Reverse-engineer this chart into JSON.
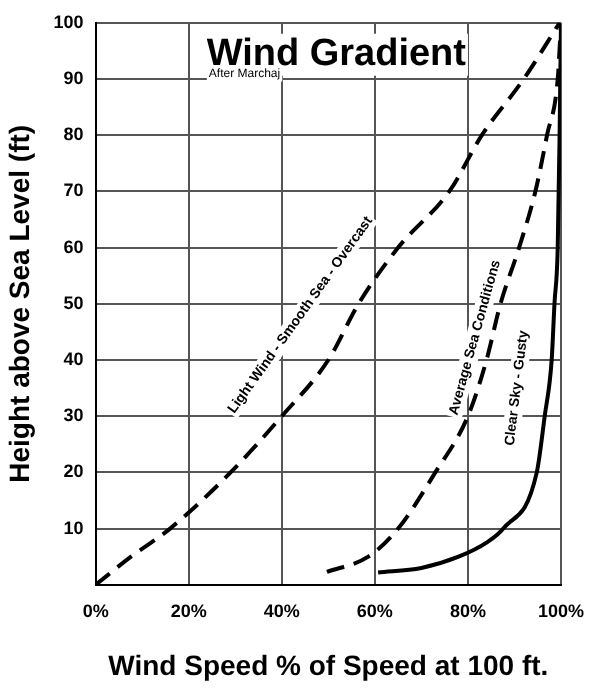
{
  "chart_data": {
    "type": "line",
    "title": "Wind Gradient",
    "xlabel": "Wind Speed % of Speed at 100 ft.",
    "ylabel": "Height above Sea Level (ft)",
    "xlim": [
      0,
      100
    ],
    "ylim": [
      0,
      100
    ],
    "xticks": [
      {
        "value": 0,
        "label": "0%"
      },
      {
        "value": 20,
        "label": "20%"
      },
      {
        "value": 40,
        "label": "40%"
      },
      {
        "value": 60,
        "label": "60%"
      },
      {
        "value": 80,
        "label": "80%"
      },
      {
        "value": 100,
        "label": "100%"
      }
    ],
    "yticks": [
      10,
      20,
      30,
      40,
      50,
      60,
      70,
      80,
      90,
      100
    ],
    "grid": true,
    "legend": false,
    "marker": "none",
    "series": [
      {
        "color": "#000000",
        "line_style": "dashed",
        "x": [
          0,
          7.6,
          16,
          29,
          40,
          50,
          56.5,
          65,
          76,
          83,
          92,
          99.7
        ],
        "values": [
          0,
          5,
          10,
          20,
          30,
          40,
          50,
          60,
          70,
          80,
          90,
          100
        ]
      },
      {
        "color": "#000000",
        "line_style": "dashed",
        "x": [
          49.7,
          58.6,
          65,
          73,
          80,
          84,
          87,
          91,
          94.5,
          97,
          99.3,
          100
        ],
        "values": [
          2.3,
          5,
          10,
          20,
          30,
          40,
          50,
          60,
          70,
          80,
          90,
          100
        ]
      },
      {
        "color": "#000000",
        "line_style": "solid",
        "x": [
          60.7,
          70,
          78,
          84,
          87.6,
          94.8,
          96.5,
          98,
          98.6,
          99.3,
          99.7,
          100
        ],
        "values": [
          2.2,
          3,
          5,
          7.5,
          10,
          20,
          30,
          40,
          50,
          60,
          80,
          100
        ]
      }
    ],
    "annotations": [
      "After Marchaj",
      "Light Wind - Smooth Sea - Overcast",
      "Average Sea Conditions",
      "Clear Sky - Gusty"
    ]
  }
}
